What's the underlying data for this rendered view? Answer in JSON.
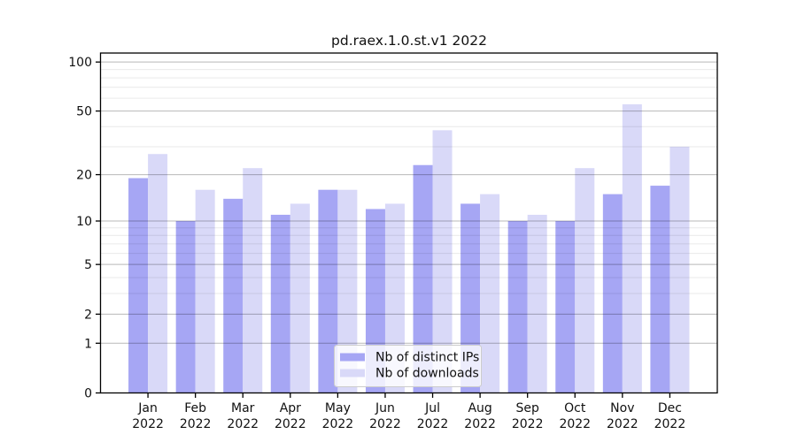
{
  "figure": {
    "background": "#ffffff"
  },
  "chart_data": {
    "type": "bar",
    "title": "pd.raex.1.0.st.v1 2022",
    "categories": [
      "Jan",
      "Feb",
      "Mar",
      "Apr",
      "May",
      "Jun",
      "Jul",
      "Aug",
      "Sep",
      "Oct",
      "Nov",
      "Dec"
    ],
    "category_year": "2022",
    "series": [
      {
        "name": "Nb of distinct IPs",
        "color": "#a6a6f4",
        "values": [
          19,
          10,
          14,
          11,
          16,
          12,
          23,
          13,
          10,
          10,
          15,
          17
        ]
      },
      {
        "name": "Nb of downloads",
        "color": "#d9d9f8",
        "values": [
          27,
          16,
          22,
          13,
          16,
          13,
          38,
          15,
          11,
          22,
          55,
          30
        ]
      }
    ],
    "xlabel": "",
    "ylabel": "",
    "yscale": "symlog",
    "ylim": [
      0,
      113.5
    ],
    "yticks": [
      0,
      1,
      2,
      5,
      10,
      20,
      50,
      100
    ],
    "ytick_labels": [
      "0",
      "1",
      "2",
      "5",
      "10",
      "20",
      "50",
      "100"
    ],
    "yticks_minor": [
      3,
      4,
      6,
      7,
      8,
      9,
      30,
      40,
      60,
      70,
      80,
      90
    ],
    "grid": true,
    "legend_position": "lower center"
  },
  "legend": {
    "items": [
      {
        "label": "Nb of distinct IPs",
        "color": "#a6a6f4"
      },
      {
        "label": "Nb of downloads",
        "color": "#d9d9f8"
      }
    ]
  },
  "style": {
    "axis_color": "#000000",
    "major_grid_rgba": "rgba(0,0,0,0.28)",
    "minor_grid_rgba": "rgba(0,0,0,0.085)",
    "text_color": "#111111",
    "legend_border_color": "#cccccc",
    "legend_bg_color": "#ffffff"
  }
}
